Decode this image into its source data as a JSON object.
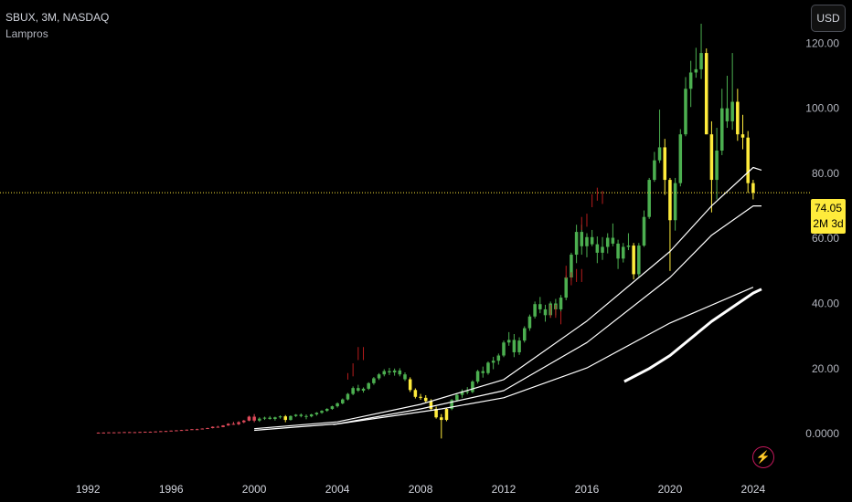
{
  "legend": {
    "symbol_line": "SBUX, 3M, NASDAQ",
    "indicator": "Lampros"
  },
  "currency_button": "USD",
  "last_price": {
    "value": "74.05",
    "countdown": "2M 3d"
  },
  "colors": {
    "up": "#4caf50",
    "down": "#e04a5a",
    "signal": "#ffeb3b",
    "ma": "#ffffff",
    "marker": "#b71c1c"
  },
  "icons": {
    "alert": "lightning-bolt-icon"
  },
  "chart_data": {
    "type": "candlestick",
    "title": "",
    "xlabel": "",
    "ylabel": "",
    "x_ticks": [
      "1992",
      "1996",
      "2000",
      "2004",
      "2008",
      "2012",
      "2016",
      "2020",
      "2024"
    ],
    "y_ticks": [
      "0.0000",
      "20.00",
      "40.00",
      "60.00",
      "80.00",
      "100.00",
      "120.00"
    ],
    "xlim": [
      1989.0,
      2025.5
    ],
    "ylim": [
      -7.0,
      126.0
    ],
    "grid": false,
    "last_value": 74.05,
    "candles": [
      [
        1992.5,
        0.3,
        0.35,
        0.25,
        0.3,
        "d"
      ],
      [
        1992.75,
        0.3,
        0.36,
        0.28,
        0.32,
        "d"
      ],
      [
        1993.0,
        0.32,
        0.4,
        0.3,
        0.38,
        "d"
      ],
      [
        1993.25,
        0.38,
        0.42,
        0.34,
        0.36,
        "d"
      ],
      [
        1993.5,
        0.36,
        0.44,
        0.34,
        0.42,
        "d"
      ],
      [
        1993.75,
        0.42,
        0.5,
        0.4,
        0.47,
        "d"
      ],
      [
        1994.0,
        0.47,
        0.5,
        0.41,
        0.44,
        "d"
      ],
      [
        1994.25,
        0.44,
        0.48,
        0.4,
        0.45,
        "d"
      ],
      [
        1994.5,
        0.45,
        0.55,
        0.43,
        0.52,
        "d"
      ],
      [
        1994.75,
        0.52,
        0.6,
        0.5,
        0.57,
        "d"
      ],
      [
        1995.0,
        0.57,
        0.62,
        0.52,
        0.55,
        "d"
      ],
      [
        1995.25,
        0.55,
        0.7,
        0.53,
        0.66,
        "d"
      ],
      [
        1995.5,
        0.66,
        0.78,
        0.64,
        0.75,
        "d"
      ],
      [
        1995.75,
        0.75,
        0.85,
        0.72,
        0.8,
        "d"
      ],
      [
        1996.0,
        0.8,
        0.95,
        0.78,
        0.92,
        "d"
      ],
      [
        1996.25,
        0.92,
        1.05,
        0.88,
        1.0,
        "d"
      ],
      [
        1996.5,
        1.0,
        1.15,
        0.95,
        1.1,
        "d"
      ],
      [
        1996.75,
        1.1,
        1.25,
        1.05,
        1.2,
        "d"
      ],
      [
        1997.0,
        1.2,
        1.4,
        1.15,
        1.35,
        "d"
      ],
      [
        1997.25,
        1.35,
        1.5,
        1.2,
        1.3,
        "d"
      ],
      [
        1997.5,
        1.3,
        1.6,
        1.28,
        1.55,
        "d"
      ],
      [
        1997.75,
        1.55,
        1.8,
        1.5,
        1.7,
        "d"
      ],
      [
        1998.0,
        1.7,
        2.2,
        1.6,
        2.1,
        "d"
      ],
      [
        1998.25,
        2.1,
        2.4,
        1.9,
        2.0,
        "d"
      ],
      [
        1998.5,
        2.0,
        2.6,
        1.95,
        2.5,
        "d"
      ],
      [
        1998.75,
        2.5,
        3.2,
        2.4,
        3.0,
        "d"
      ],
      [
        1999.0,
        3.0,
        3.6,
        2.7,
        2.9,
        "d"
      ],
      [
        1999.25,
        2.9,
        3.8,
        2.6,
        3.5,
        "d"
      ],
      [
        1999.5,
        3.5,
        4.2,
        3.2,
        4.0,
        "d"
      ],
      [
        1999.75,
        4.0,
        5.5,
        3.8,
        5.2,
        "d"
      ],
      [
        2000.0,
        5.2,
        6.0,
        3.5,
        4.0,
        "d"
      ],
      [
        2000.25,
        4.0,
        5.0,
        3.6,
        4.6,
        "u"
      ],
      [
        2000.5,
        4.6,
        5.2,
        4.2,
        4.9,
        "u"
      ],
      [
        2000.75,
        4.9,
        5.4,
        4.3,
        4.5,
        "u"
      ],
      [
        2001.0,
        4.5,
        5.2,
        4.0,
        5.0,
        "u"
      ],
      [
        2001.25,
        5.0,
        5.6,
        4.6,
        5.3,
        "u"
      ],
      [
        2001.5,
        5.3,
        5.7,
        3.5,
        4.2,
        "s"
      ],
      [
        2001.75,
        4.2,
        5.6,
        4.0,
        5.4,
        "u"
      ],
      [
        2002.0,
        5.4,
        6.0,
        5.1,
        5.8,
        "u"
      ],
      [
        2002.25,
        5.8,
        6.2,
        5.0,
        5.4,
        "u"
      ],
      [
        2002.5,
        5.4,
        5.9,
        4.4,
        5.3,
        "u"
      ],
      [
        2002.75,
        5.3,
        6.1,
        5.0,
        5.9,
        "u"
      ],
      [
        2003.0,
        5.9,
        6.6,
        5.5,
        6.4,
        "u"
      ],
      [
        2003.25,
        6.4,
        7.2,
        6.1,
        7.0,
        "u"
      ],
      [
        2003.5,
        7.0,
        7.8,
        6.7,
        7.6,
        "u"
      ],
      [
        2003.75,
        7.6,
        8.6,
        7.3,
        8.4,
        "u"
      ],
      [
        2004.0,
        8.4,
        9.6,
        8.0,
        9.3,
        "u"
      ],
      [
        2004.25,
        9.3,
        10.8,
        9.0,
        10.5,
        "u"
      ],
      [
        2004.5,
        10.5,
        12.5,
        10.2,
        12.2,
        "u"
      ],
      [
        2004.75,
        12.2,
        14.5,
        11.8,
        14.0,
        "u"
      ],
      [
        2005.0,
        14.0,
        15.0,
        12.8,
        13.2,
        "u"
      ],
      [
        2005.25,
        13.2,
        14.2,
        12.6,
        13.8,
        "u"
      ],
      [
        2005.5,
        13.8,
        15.8,
        13.4,
        15.5,
        "u"
      ],
      [
        2005.75,
        15.5,
        17.4,
        15.0,
        17.0,
        "u"
      ],
      [
        2006.0,
        17.0,
        18.6,
        16.5,
        18.2,
        "u"
      ],
      [
        2006.25,
        18.2,
        19.8,
        17.6,
        19.2,
        "u"
      ],
      [
        2006.5,
        19.2,
        20.2,
        18.0,
        18.8,
        "u"
      ],
      [
        2006.75,
        18.8,
        20.0,
        17.8,
        19.4,
        "u"
      ],
      [
        2007.0,
        19.4,
        20.1,
        17.6,
        18.2,
        "u"
      ],
      [
        2007.25,
        18.2,
        18.8,
        16.2,
        16.7,
        "u"
      ],
      [
        2007.5,
        16.7,
        17.3,
        12.8,
        13.4,
        "s"
      ],
      [
        2007.75,
        13.4,
        13.9,
        10.8,
        11.3,
        "s"
      ],
      [
        2008.0,
        11.3,
        12.2,
        10.4,
        11.0,
        "s"
      ],
      [
        2008.25,
        11.0,
        11.8,
        9.6,
        10.0,
        "s"
      ],
      [
        2008.5,
        10.0,
        10.6,
        7.2,
        7.6,
        "s"
      ],
      [
        2008.75,
        7.6,
        8.3,
        4.6,
        5.0,
        "s"
      ],
      [
        2009.0,
        5.0,
        6.0,
        -1.5,
        4.2,
        "s"
      ],
      [
        2009.25,
        4.2,
        8.0,
        3.8,
        7.6,
        "s"
      ],
      [
        2009.5,
        7.6,
        10.6,
        7.2,
        10.3,
        "u"
      ],
      [
        2009.75,
        10.3,
        12.4,
        9.8,
        11.9,
        "u"
      ],
      [
        2010.0,
        11.9,
        13.6,
        11.0,
        13.0,
        "u"
      ],
      [
        2010.25,
        13.0,
        14.3,
        12.1,
        12.8,
        "u"
      ],
      [
        2010.5,
        12.8,
        16.4,
        12.4,
        16.0,
        "u"
      ],
      [
        2010.75,
        16.0,
        19.6,
        15.4,
        19.2,
        "u"
      ],
      [
        2011.0,
        19.2,
        20.6,
        17.2,
        18.6,
        "u"
      ],
      [
        2011.25,
        18.6,
        22.2,
        18.1,
        21.8,
        "u"
      ],
      [
        2011.5,
        21.8,
        23.6,
        19.8,
        22.4,
        "u"
      ],
      [
        2011.75,
        22.4,
        24.6,
        21.2,
        24.0,
        "u"
      ],
      [
        2012.0,
        24.0,
        28.6,
        23.5,
        28.0,
        "u"
      ],
      [
        2012.25,
        28.0,
        31.2,
        27.0,
        28.8,
        "u"
      ],
      [
        2012.5,
        28.8,
        30.6,
        23.5,
        25.0,
        "u"
      ],
      [
        2012.75,
        25.0,
        29.6,
        24.2,
        28.6,
        "u"
      ],
      [
        2013.0,
        28.6,
        33.0,
        28.0,
        32.4,
        "u"
      ],
      [
        2013.25,
        32.4,
        36.6,
        31.6,
        36.0,
        "u"
      ],
      [
        2013.5,
        36.0,
        40.6,
        35.4,
        39.8,
        "u"
      ],
      [
        2013.75,
        39.8,
        42.0,
        37.0,
        38.2,
        "u"
      ],
      [
        2014.0,
        38.2,
        39.6,
        34.4,
        36.4,
        "u"
      ],
      [
        2014.25,
        36.4,
        40.6,
        35.6,
        40.0,
        "u"
      ],
      [
        2014.5,
        40.0,
        41.4,
        36.4,
        38.2,
        "u"
      ],
      [
        2014.75,
        38.2,
        42.6,
        37.4,
        41.8,
        "u"
      ],
      [
        2015.0,
        41.8,
        48.6,
        41.0,
        48.0,
        "u"
      ],
      [
        2015.25,
        48.0,
        55.6,
        47.0,
        55.0,
        "u"
      ],
      [
        2015.5,
        55.0,
        64.2,
        52.4,
        62.0,
        "u"
      ],
      [
        2015.75,
        62.0,
        64.2,
        55.0,
        57.6,
        "u"
      ],
      [
        2016.0,
        57.6,
        61.6,
        54.2,
        60.4,
        "u"
      ],
      [
        2016.25,
        60.4,
        62.6,
        57.6,
        58.2,
        "u"
      ],
      [
        2016.5,
        58.2,
        60.6,
        52.4,
        55.6,
        "u"
      ],
      [
        2016.75,
        55.6,
        60.4,
        53.4,
        57.4,
        "u"
      ],
      [
        2017.0,
        57.4,
        61.6,
        55.4,
        60.2,
        "u"
      ],
      [
        2017.25,
        60.2,
        64.6,
        57.6,
        58.4,
        "u"
      ],
      [
        2017.5,
        58.4,
        59.6,
        50.6,
        53.8,
        "u"
      ],
      [
        2017.75,
        53.8,
        58.6,
        52.6,
        57.4,
        "u"
      ],
      [
        2018.0,
        57.4,
        61.6,
        56.4,
        57.8,
        "u"
      ],
      [
        2018.25,
        57.8,
        58.6,
        47.4,
        49.0,
        "s"
      ],
      [
        2018.5,
        49.0,
        58.6,
        48.2,
        57.8,
        "u"
      ],
      [
        2018.75,
        57.8,
        68.6,
        57.4,
        66.6,
        "u"
      ],
      [
        2019.0,
        66.6,
        78.6,
        66.0,
        78.0,
        "u"
      ],
      [
        2019.25,
        78.0,
        86.6,
        77.4,
        84.0,
        "u"
      ],
      [
        2019.5,
        84.0,
        99.6,
        83.2,
        88.0,
        "u"
      ],
      [
        2019.75,
        88.0,
        90.6,
        73.4,
        78.0,
        "s"
      ],
      [
        2020.0,
        78.0,
        78.6,
        50.0,
        65.6,
        "s"
      ],
      [
        2020.25,
        65.6,
        78.6,
        62.4,
        77.0,
        "u"
      ],
      [
        2020.5,
        77.0,
        93.6,
        76.0,
        92.0,
        "u"
      ],
      [
        2020.75,
        92.0,
        109.6,
        91.4,
        106.0,
        "u"
      ],
      [
        2021.0,
        106.0,
        114.6,
        100.4,
        111.0,
        "u"
      ],
      [
        2021.25,
        111.0,
        118.6,
        109.4,
        112.0,
        "u"
      ],
      [
        2021.5,
        112.0,
        126.0,
        109.0,
        117.0,
        "u"
      ],
      [
        2021.75,
        117.0,
        118.4,
        92.0,
        92.0,
        "s"
      ],
      [
        2022.0,
        92.0,
        96.0,
        68.0,
        78.0,
        "s"
      ],
      [
        2022.25,
        78.0,
        94.0,
        72.0,
        87.0,
        "u"
      ],
      [
        2022.5,
        87.0,
        106.0,
        85.6,
        100.0,
        "u"
      ],
      [
        2022.75,
        100.0,
        110.0,
        94.0,
        96.0,
        "u"
      ],
      [
        2023.0,
        96.0,
        117.0,
        93.4,
        102.0,
        "u"
      ],
      [
        2023.25,
        102.0,
        106.0,
        90.0,
        92.0,
        "s"
      ],
      [
        2023.5,
        92.0,
        98.0,
        87.4,
        91.0,
        "s"
      ],
      [
        2023.75,
        91.0,
        93.0,
        74.0,
        77.0,
        "s"
      ],
      [
        2024.0,
        77.0,
        78.0,
        72.0,
        74.05,
        "s"
      ]
    ],
    "series": [
      {
        "values": [
          [
            2000.0,
            1.5
          ],
          [
            2004,
            3.6
          ],
          [
            2008,
            9.0
          ],
          [
            2012,
            16.6
          ],
          [
            2016,
            34.6
          ],
          [
            2020,
            56.0
          ],
          [
            2022,
            70.0
          ],
          [
            2024,
            81.8
          ],
          [
            2024.4,
            81.0
          ]
        ]
      },
      {
        "values": [
          [
            2000.0,
            1.0
          ],
          [
            2002,
            2.0
          ],
          [
            2004,
            3.0
          ],
          [
            2008,
            7.6
          ],
          [
            2012,
            13.2
          ],
          [
            2016,
            28.0
          ],
          [
            2020,
            48.0
          ],
          [
            2022,
            61.0
          ],
          [
            2024,
            70.0
          ],
          [
            2024.4,
            70.0
          ]
        ]
      },
      {
        "values": [
          [
            2003.8,
            2.8
          ],
          [
            2006,
            4.8
          ],
          [
            2009,
            7.6
          ],
          [
            2012,
            11.0
          ],
          [
            2016,
            20.2
          ],
          [
            2020,
            34.0
          ],
          [
            2024,
            45.0
          ]
        ]
      },
      {
        "values": [
          [
            2017.8,
            16.0
          ],
          [
            2019,
            20.0
          ],
          [
            2020,
            24.0
          ],
          [
            2022,
            34.5
          ],
          [
            2024,
            43.2
          ],
          [
            2024.4,
            44.4
          ]
        ]
      }
    ],
    "markers": [
      [
        2004.5,
        16.6,
        18.6
      ],
      [
        2004.75,
        17.6,
        21.6
      ],
      [
        2005.0,
        22.6,
        26.6
      ],
      [
        2005.25,
        22.6,
        26.6
      ],
      [
        2014.25,
        35.6,
        39.6
      ],
      [
        2014.5,
        35.6,
        39.6
      ],
      [
        2014.75,
        33.6,
        37.6
      ],
      [
        2015.0,
        47.6,
        51.6
      ],
      [
        2015.25,
        45.6,
        49.6
      ],
      [
        2015.5,
        46.6,
        50.6
      ],
      [
        2015.75,
        46.6,
        50.6
      ],
      [
        2015.75,
        62.6,
        66.6
      ],
      [
        2016.0,
        63.6,
        67.6
      ],
      [
        2016.25,
        69.6,
        73.6
      ],
      [
        2016.5,
        71.6,
        75.6
      ],
      [
        2016.75,
        70.6,
        74.6
      ]
    ]
  }
}
